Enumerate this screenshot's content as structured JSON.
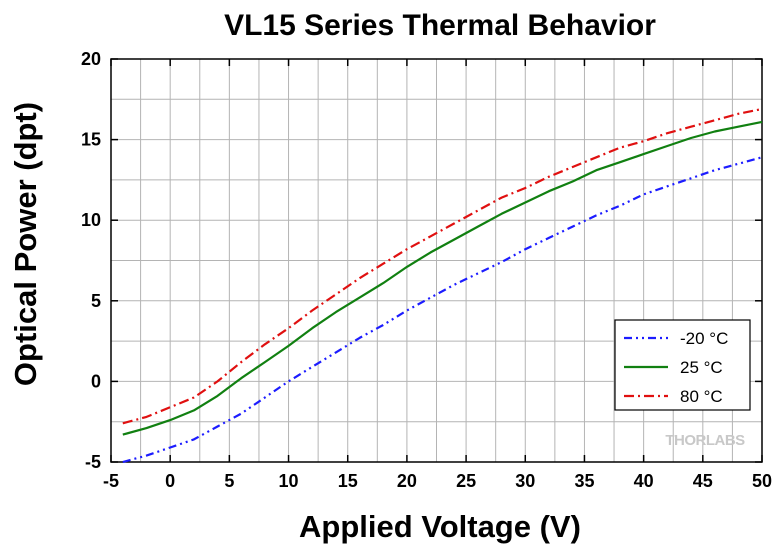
{
  "colors": {
    "grid": "#b4b4b4",
    "axis": "#000000",
    "series_neg20": "#1c1cff",
    "series_25": "#118011",
    "series_80": "#e01010",
    "watermark": "#c8c8c8"
  },
  "watermark": "THORLABS",
  "chart_data": {
    "type": "line",
    "title": "VL15 Series Thermal Behavior",
    "xlabel": "Applied Voltage (V)",
    "ylabel": "Optical Power (dpt)",
    "xlim": [
      -5,
      50
    ],
    "ylim": [
      -5,
      20
    ],
    "xticks": [
      -5,
      0,
      5,
      10,
      15,
      20,
      25,
      30,
      35,
      40,
      45,
      50
    ],
    "yticks": [
      -5,
      0,
      5,
      10,
      15,
      20
    ],
    "grid": true,
    "legend_position": "bottom-right",
    "series": [
      {
        "name": "-20 °C",
        "style": "dash-dot-dot",
        "color_key": "series_neg20",
        "x": [
          -4,
          -2,
          0,
          2,
          4,
          6,
          8,
          10,
          12,
          14,
          16,
          18,
          20,
          22,
          24,
          26,
          28,
          30,
          32,
          34,
          36,
          38,
          40,
          42,
          44,
          46,
          48,
          50
        ],
        "y": [
          -5.0,
          -4.6,
          -4.1,
          -3.6,
          -2.8,
          -2.0,
          -1.0,
          0.0,
          0.9,
          1.8,
          2.7,
          3.5,
          4.4,
          5.2,
          6.0,
          6.7,
          7.4,
          8.2,
          8.9,
          9.6,
          10.3,
          10.9,
          11.6,
          12.1,
          12.6,
          13.1,
          13.5,
          13.9
        ]
      },
      {
        "name": "25 °C",
        "style": "solid",
        "color_key": "series_25",
        "x": [
          -4,
          -2,
          0,
          2,
          4,
          6,
          8,
          10,
          12,
          14,
          16,
          18,
          20,
          22,
          24,
          26,
          28,
          30,
          32,
          34,
          36,
          38,
          40,
          42,
          44,
          46,
          48,
          50
        ],
        "y": [
          -3.3,
          -2.9,
          -2.4,
          -1.8,
          -0.9,
          0.2,
          1.2,
          2.2,
          3.3,
          4.3,
          5.2,
          6.1,
          7.1,
          8.0,
          8.8,
          9.6,
          10.4,
          11.1,
          11.8,
          12.4,
          13.1,
          13.6,
          14.1,
          14.6,
          15.1,
          15.5,
          15.8,
          16.1
        ]
      },
      {
        "name": "80 °C",
        "style": "dash-dot",
        "color_key": "series_80",
        "x": [
          -4,
          -2,
          0,
          2,
          4,
          6,
          8,
          10,
          12,
          14,
          16,
          18,
          20,
          22,
          24,
          26,
          28,
          30,
          32,
          34,
          36,
          38,
          40,
          42,
          44,
          46,
          48,
          50
        ],
        "y": [
          -2.6,
          -2.2,
          -1.6,
          -1.0,
          0.0,
          1.2,
          2.3,
          3.3,
          4.4,
          5.4,
          6.4,
          7.3,
          8.2,
          9.0,
          9.8,
          10.6,
          11.4,
          12.0,
          12.7,
          13.3,
          13.9,
          14.5,
          14.9,
          15.4,
          15.8,
          16.2,
          16.6,
          16.9
        ]
      }
    ]
  }
}
